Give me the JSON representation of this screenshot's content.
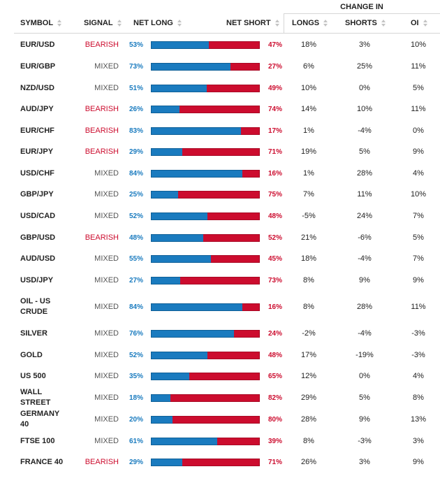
{
  "header": {
    "change_in": "CHANGE IN",
    "symbol": "SYMBOL",
    "signal": "SIGNAL",
    "net_long": "NET LONG",
    "net_short": "NET SHORT",
    "longs": "LONGS",
    "shorts": "SHORTS",
    "oi": "OI"
  },
  "colors": {
    "long": "#1a7bbf",
    "short": "#cc0c2e",
    "mixed": "#555555"
  },
  "rows": [
    {
      "symbol": "EUR/USD",
      "signal": "BEARISH",
      "net_long": "53%",
      "net_short": "47%",
      "long_fraction": 0.53,
      "longs": "18%",
      "shorts": "3%",
      "oi": "10%"
    },
    {
      "symbol": "EUR/GBP",
      "signal": "MIXED",
      "net_long": "73%",
      "net_short": "27%",
      "long_fraction": 0.73,
      "longs": "6%",
      "shorts": "25%",
      "oi": "11%"
    },
    {
      "symbol": "NZD/USD",
      "signal": "MIXED",
      "net_long": "51%",
      "net_short": "49%",
      "long_fraction": 0.51,
      "longs": "10%",
      "shorts": "0%",
      "oi": "5%"
    },
    {
      "symbol": "AUD/JPY",
      "signal": "BEARISH",
      "net_long": "26%",
      "net_short": "74%",
      "long_fraction": 0.26,
      "longs": "14%",
      "shorts": "10%",
      "oi": "11%"
    },
    {
      "symbol": "EUR/CHF",
      "signal": "BEARISH",
      "net_long": "83%",
      "net_short": "17%",
      "long_fraction": 0.83,
      "longs": "1%",
      "shorts": "-4%",
      "oi": "0%"
    },
    {
      "symbol": "EUR/JPY",
      "signal": "BEARISH",
      "net_long": "29%",
      "net_short": "71%",
      "long_fraction": 0.29,
      "longs": "19%",
      "shorts": "5%",
      "oi": "9%"
    },
    {
      "symbol": "USD/CHF",
      "signal": "MIXED",
      "net_long": "84%",
      "net_short": "16%",
      "long_fraction": 0.84,
      "longs": "1%",
      "shorts": "28%",
      "oi": "4%"
    },
    {
      "symbol": "GBP/JPY",
      "signal": "MIXED",
      "net_long": "25%",
      "net_short": "75%",
      "long_fraction": 0.25,
      "longs": "7%",
      "shorts": "11%",
      "oi": "10%"
    },
    {
      "symbol": "USD/CAD",
      "signal": "MIXED",
      "net_long": "52%",
      "net_short": "48%",
      "long_fraction": 0.52,
      "longs": "-5%",
      "shorts": "24%",
      "oi": "7%"
    },
    {
      "symbol": "GBP/USD",
      "signal": "BEARISH",
      "net_long": "48%",
      "net_short": "52%",
      "long_fraction": 0.48,
      "longs": "21%",
      "shorts": "-6%",
      "oi": "5%"
    },
    {
      "symbol": "AUD/USD",
      "signal": "MIXED",
      "net_long": "55%",
      "net_short": "45%",
      "long_fraction": 0.55,
      "longs": "18%",
      "shorts": "-4%",
      "oi": "7%"
    },
    {
      "symbol": "USD/JPY",
      "signal": "MIXED",
      "net_long": "27%",
      "net_short": "73%",
      "long_fraction": 0.27,
      "longs": "8%",
      "shorts": "9%",
      "oi": "9%"
    },
    {
      "symbol": "OIL - US CRUDE",
      "signal": "MIXED",
      "net_long": "84%",
      "net_short": "16%",
      "long_fraction": 0.84,
      "longs": "8%",
      "shorts": "28%",
      "oi": "11%"
    },
    {
      "symbol": "SILVER",
      "signal": "MIXED",
      "net_long": "76%",
      "net_short": "24%",
      "long_fraction": 0.76,
      "longs": "-2%",
      "shorts": "-4%",
      "oi": "-3%"
    },
    {
      "symbol": "GOLD",
      "signal": "MIXED",
      "net_long": "52%",
      "net_short": "48%",
      "long_fraction": 0.52,
      "longs": "17%",
      "shorts": "-19%",
      "oi": "-3%"
    },
    {
      "symbol": "US 500",
      "signal": "MIXED",
      "net_long": "35%",
      "net_short": "65%",
      "long_fraction": 0.35,
      "longs": "12%",
      "shorts": "0%",
      "oi": "4%"
    },
    {
      "symbol": "WALL STREET",
      "signal": "MIXED",
      "net_long": "18%",
      "net_short": "82%",
      "long_fraction": 0.18,
      "longs": "29%",
      "shorts": "5%",
      "oi": "8%"
    },
    {
      "symbol": "GERMANY 40",
      "signal": "MIXED",
      "net_long": "20%",
      "net_short": "80%",
      "long_fraction": 0.2,
      "longs": "28%",
      "shorts": "9%",
      "oi": "13%"
    },
    {
      "symbol": "FTSE 100",
      "signal": "MIXED",
      "net_long": "61%",
      "net_short": "39%",
      "long_fraction": 0.61,
      "longs": "8%",
      "shorts": "-3%",
      "oi": "3%"
    },
    {
      "symbol": "FRANCE 40",
      "signal": "BEARISH",
      "net_long": "29%",
      "net_short": "71%",
      "long_fraction": 0.29,
      "longs": "26%",
      "shorts": "3%",
      "oi": "9%"
    }
  ]
}
